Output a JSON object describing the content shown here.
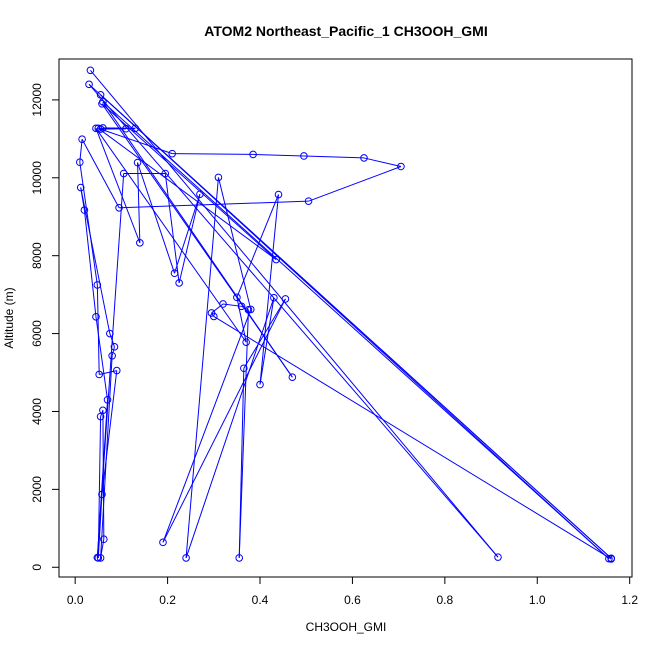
{
  "chart_data": {
    "type": "line",
    "title": "ATOM2 Northeast_Pacific_1 CH3OOH_GMI",
    "xlabel": "CH3OOH_GMI",
    "ylabel": "Altitude (m)",
    "xlim": [
      -0.035,
      1.205
    ],
    "ylim": [
      -250,
      13050
    ],
    "x_ticks": [
      0.0,
      0.2,
      0.4,
      0.6,
      0.8,
      1.0,
      1.2
    ],
    "x_tick_labels": [
      "0.0",
      "0.2",
      "0.4",
      "0.6",
      "0.8",
      "1.0",
      "1.2"
    ],
    "y_ticks": [
      0,
      2000,
      4000,
      6000,
      8000,
      10000,
      12000
    ],
    "y_tick_labels": [
      "0",
      "2000",
      "4000",
      "6000",
      "8000",
      "10000",
      "12000"
    ],
    "grid": false,
    "legend": "none",
    "series": [
      {
        "marker": "open-circle",
        "color": "#0000ff",
        "points": [
          [
            0.033,
            12760
          ],
          [
            0.915,
            260
          ],
          [
            0.03,
            12400
          ],
          [
            1.16,
            230
          ],
          [
            0.055,
            12130
          ],
          [
            1.155,
            220
          ],
          [
            0.06,
            11950
          ],
          [
            0.47,
            4880
          ],
          [
            0.058,
            11900
          ],
          [
            0.435,
            7900
          ],
          [
            0.05,
            11270
          ],
          [
            0.13,
            11270
          ],
          [
            0.06,
            11280
          ],
          [
            0.11,
            11260
          ],
          [
            0.055,
            11250
          ],
          [
            0.21,
            10620
          ],
          [
            0.385,
            10600
          ],
          [
            0.495,
            10560
          ],
          [
            0.625,
            10510
          ],
          [
            0.705,
            10290
          ],
          [
            0.505,
            9400
          ],
          [
            0.095,
            9230
          ],
          [
            0.015,
            10990
          ],
          [
            0.01,
            10400
          ],
          [
            0.048,
            7250
          ],
          [
            0.052,
            4950
          ],
          [
            0.09,
            5050
          ],
          [
            0.058,
            1870
          ],
          [
            0.05,
            240
          ],
          [
            0.055,
            3870
          ],
          [
            0.06,
            4030
          ],
          [
            0.062,
            720
          ],
          [
            0.055,
            240
          ],
          [
            0.08,
            5430
          ],
          [
            0.085,
            5660
          ],
          [
            0.075,
            6000
          ],
          [
            0.012,
            9750
          ],
          [
            0.02,
            9170
          ],
          [
            0.045,
            6430
          ],
          [
            0.07,
            4300
          ],
          [
            0.048,
            250
          ],
          [
            0.105,
            10110
          ],
          [
            0.195,
            10110
          ],
          [
            0.225,
            7300
          ],
          [
            0.27,
            9580
          ],
          [
            0.215,
            7550
          ],
          [
            0.135,
            10390
          ],
          [
            0.14,
            8330
          ],
          [
            0.045,
            11270
          ],
          [
            0.37,
            5780
          ],
          [
            0.35,
            6930
          ],
          [
            0.44,
            9570
          ],
          [
            0.4,
            4690
          ],
          [
            0.43,
            6920
          ],
          [
            0.24,
            240
          ],
          [
            0.31,
            10010
          ],
          [
            0.38,
            6620
          ],
          [
            0.19,
            640
          ],
          [
            0.455,
            6890
          ],
          [
            0.365,
            5110
          ],
          [
            0.355,
            240
          ],
          [
            0.375,
            6610
          ],
          [
            0.36,
            6700
          ],
          [
            0.32,
            6760
          ],
          [
            0.295,
            6530
          ],
          [
            0.3,
            6440
          ],
          [
            1.16,
            215
          ]
        ]
      }
    ]
  }
}
